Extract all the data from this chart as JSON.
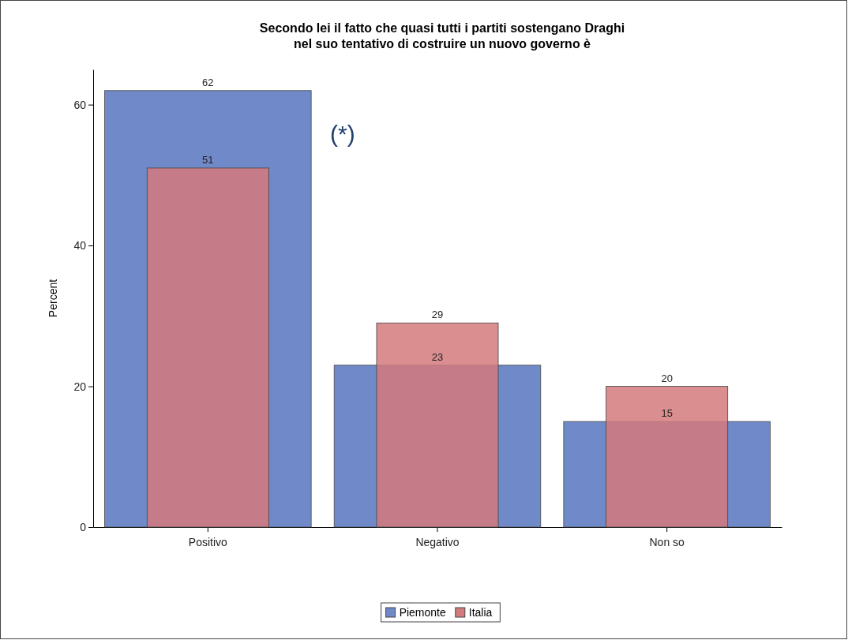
{
  "chart_data": {
    "type": "bar",
    "title": "Secondo lei il fatto che quasi tutti i partiti sostengano Draghi\nnel suo tentativo di costruire un nuovo governo è",
    "ylabel": "Percent",
    "categories": [
      "Positivo",
      "Negativo",
      "Non so"
    ],
    "series": [
      {
        "name": "Piemonte",
        "color": "#7089c8",
        "values": [
          62,
          23,
          15
        ]
      },
      {
        "name": "Italia",
        "color": "#d47a7c",
        "values": [
          51,
          29,
          20
        ]
      }
    ],
    "ylim": [
      0,
      65
    ],
    "yticks": [
      0,
      20,
      40,
      60
    ],
    "grid": false,
    "legend": "bottom",
    "data_labels": true,
    "annotations": [
      "(*)"
    ]
  }
}
